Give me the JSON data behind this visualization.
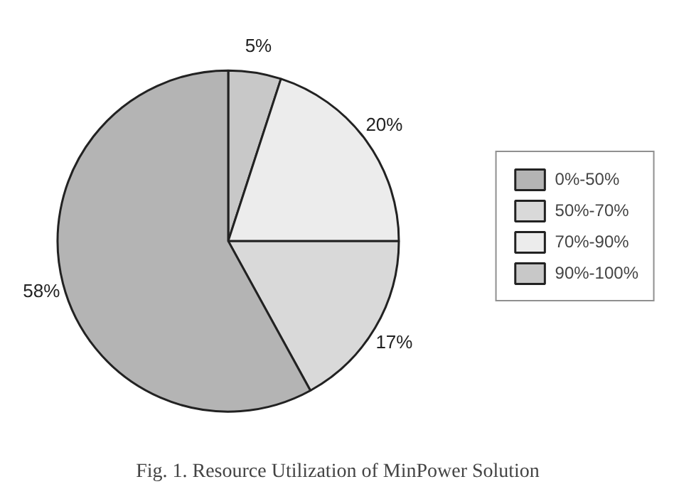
{
  "chart_data": {
    "type": "pie",
    "categories": [
      "0%-50%",
      "50%-70%",
      "70%-90%",
      "90%-100%"
    ],
    "values": [
      58,
      17,
      20,
      5
    ],
    "colors": [
      "#b4b4b4",
      "#d9d9d9",
      "#ececec",
      "#c8c8c8"
    ],
    "value_labels": [
      "58%",
      "17%",
      "20%",
      "5%"
    ],
    "legend": "right",
    "annotations": [
      "Fig. 1. Resource Utilization of MinPower Solution"
    ]
  }
}
